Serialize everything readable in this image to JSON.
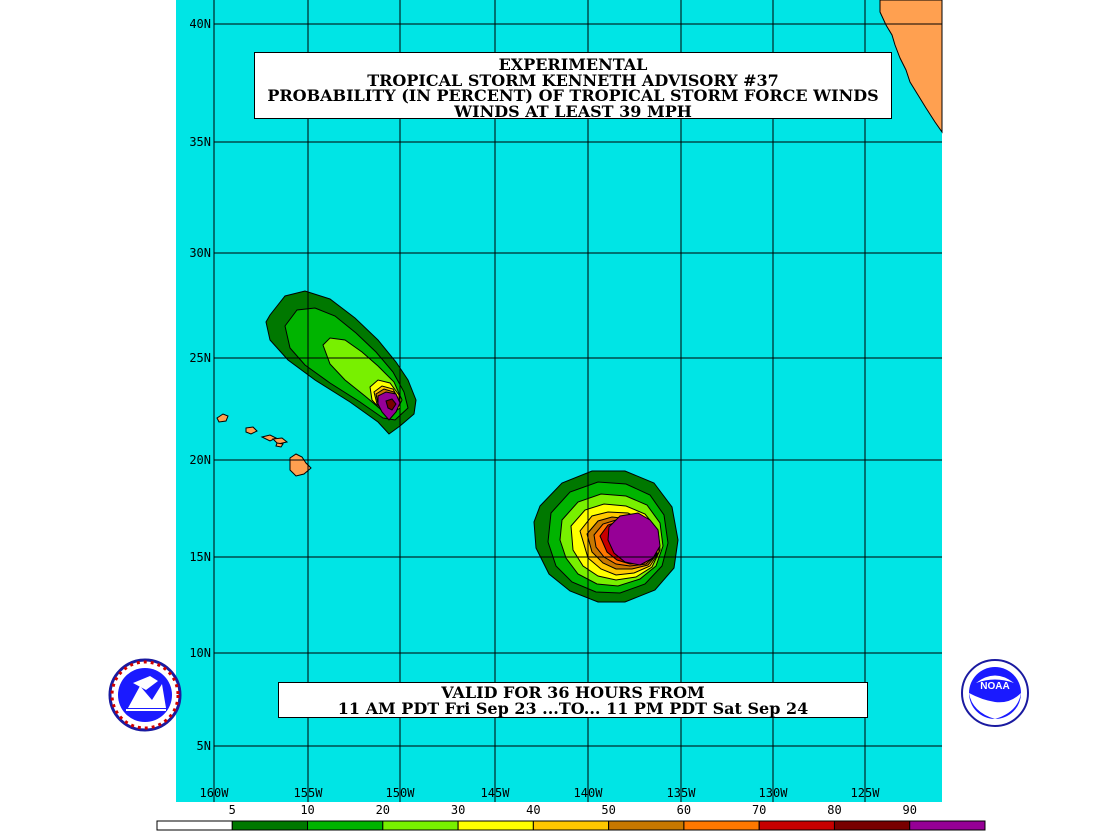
{
  "title": {
    "line1": "EXPERIMENTAL",
    "line2": "TROPICAL STORM KENNETH ADVISORY #37",
    "line3": "PROBABILITY (IN PERCENT) OF TROPICAL STORM FORCE WINDS",
    "line4": "WINDS AT LEAST 39 MPH"
  },
  "valid": {
    "line1": "VALID FOR 36 HOURS FROM",
    "line2": "11 AM PDT Fri Sep 23 ...TO... 11 PM PDT Sat Sep 24"
  },
  "lat_labels": [
    "40N",
    "35N",
    "30N",
    "25N",
    "20N",
    "15N",
    "10N",
    "5N"
  ],
  "lon_labels": [
    "160W",
    "155W",
    "150W",
    "145W",
    "140W",
    "135W",
    "130W",
    "125W"
  ],
  "scale": {
    "labels": [
      "5",
      "10",
      "20",
      "30",
      "40",
      "50",
      "60",
      "70",
      "80",
      "90"
    ],
    "colors": [
      "#ffffff",
      "#007800",
      "#00b400",
      "#78f000",
      "#ffff00",
      "#ffc800",
      "#c87800",
      "#ff7800",
      "#c80000",
      "#780000",
      "#960096"
    ]
  },
  "colors": {
    "ocean": "#00e5e5",
    "land": "#ffa050",
    "grid": "#000000"
  },
  "logos": {
    "left": "nws-logo",
    "right": "noaa-logo",
    "right_text": "NOAA"
  }
}
